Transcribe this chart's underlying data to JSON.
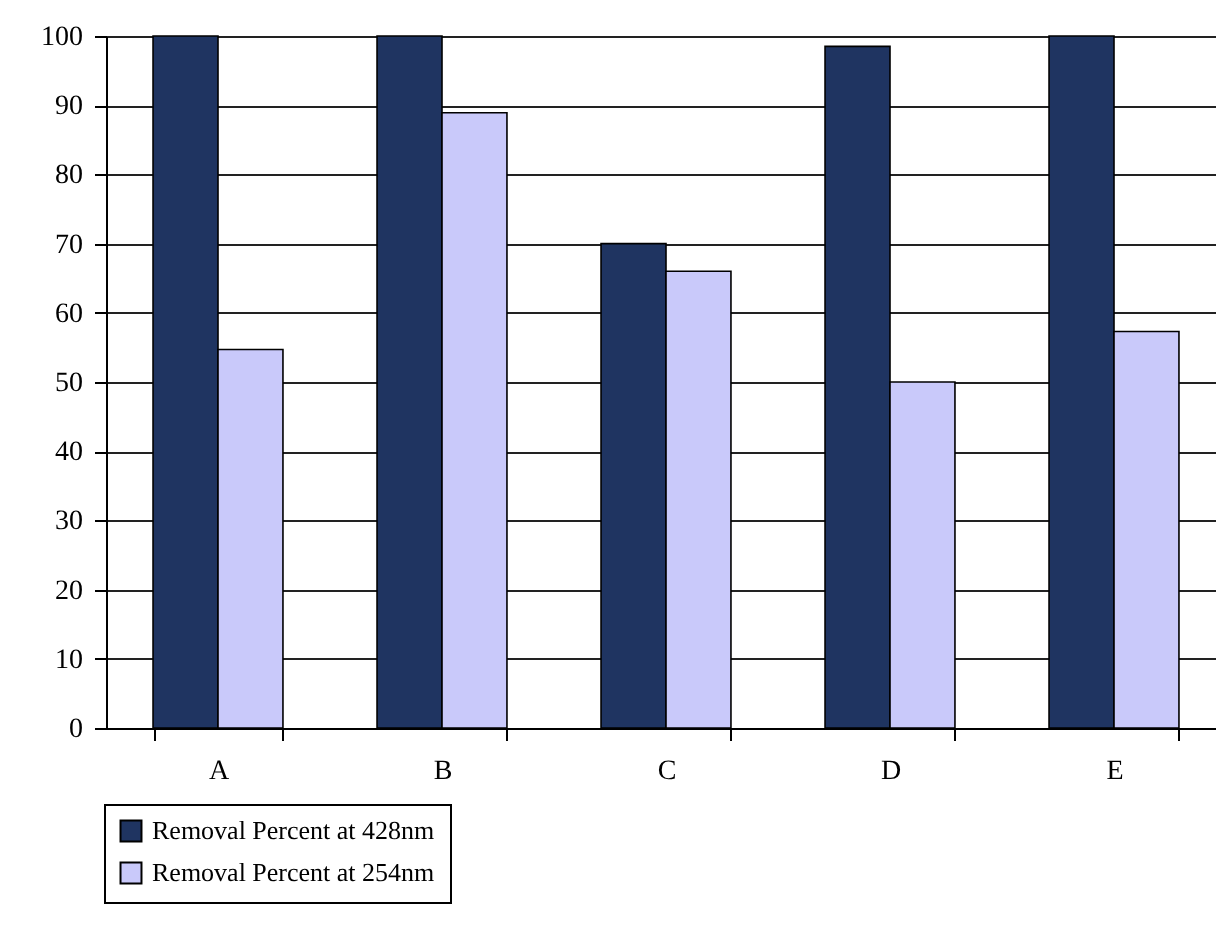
{
  "chart_data": {
    "type": "bar",
    "categories": [
      "A",
      "B",
      "C",
      "D",
      "E"
    ],
    "series": [
      {
        "name": "Removal Percent at 428nm",
        "color": "#1f3461",
        "values": [
          100,
          100,
          70,
          98.5,
          100
        ]
      },
      {
        "name": "Removal Percent at 254nm",
        "color": "#c9c9fa",
        "values": [
          54.7,
          88.9,
          66,
          50,
          57.3
        ]
      }
    ],
    "ylim": [
      0,
      100
    ],
    "yticks": [
      0,
      10,
      20,
      30,
      40,
      50,
      60,
      70,
      80,
      90,
      100
    ],
    "grid": "y",
    "legend": "bottom left"
  }
}
